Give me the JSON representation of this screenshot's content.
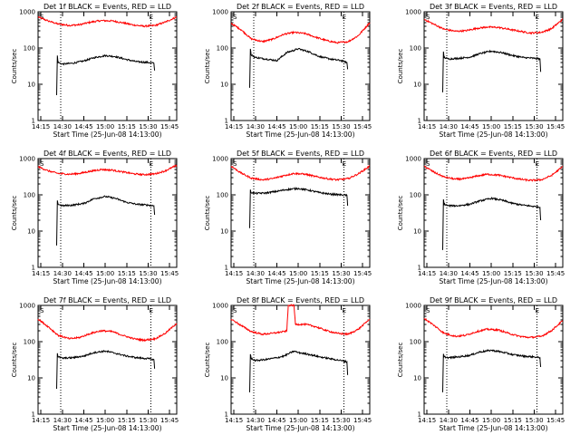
{
  "colors": {
    "events": "#000000",
    "lld": "#ff0000",
    "background": "#ffffff"
  },
  "common": {
    "ylabel": "Counts/sec",
    "xlabel": "Start Time (25-Jun-08 14:13:00)",
    "x_ticks": [
      "14:15",
      "14:30",
      "14:45",
      "15:00",
      "15:15",
      "15:30",
      "15:45"
    ],
    "y_ticks": [
      "1",
      "10",
      "100",
      "1000"
    ],
    "marker_start": "S",
    "marker_end": "E"
  },
  "chart_data": [
    {
      "type": "line",
      "title": "Det 1f BLACK = Events, RED = LLD",
      "xlim": [
        "14:13",
        "15:50"
      ],
      "ylim": [
        1,
        1000
      ],
      "yscale": "log",
      "markers": {
        "S": "14:29",
        "E": "15:32"
      },
      "series": [
        {
          "name": "RED = LLD",
          "color": "#ff0000",
          "x": [
            "14:13",
            "14:20",
            "14:27",
            "14:35",
            "14:42",
            "14:50",
            "14:57",
            "15:05",
            "15:12",
            "15:20",
            "15:27",
            "15:35",
            "15:42",
            "15:50"
          ],
          "y": [
            720,
            560,
            460,
            420,
            440,
            520,
            570,
            560,
            500,
            430,
            400,
            420,
            520,
            720
          ]
        },
        {
          "name": "BLACK = Events",
          "color": "#000000",
          "x": [
            "14:26",
            "14:26.5",
            "14:27",
            "14:30",
            "14:37",
            "14:45",
            "14:52",
            "15:00",
            "15:07",
            "15:15",
            "15:22",
            "15:30",
            "15:34",
            "15:34.5"
          ],
          "y": [
            5,
            62,
            40,
            36,
            38,
            44,
            54,
            62,
            58,
            48,
            42,
            40,
            38,
            24
          ]
        }
      ]
    },
    {
      "type": "line",
      "title": "Det 2f BLACK = Events, RED = LLD",
      "xlim": [
        "14:13",
        "15:50"
      ],
      "ylim": [
        1,
        1000
      ],
      "yscale": "log",
      "markers": {
        "S": "14:29",
        "E": "15:32"
      },
      "series": [
        {
          "name": "RED = LLD",
          "color": "#ff0000",
          "x": [
            "14:13",
            "14:20",
            "14:27",
            "14:35",
            "14:42",
            "14:50",
            "14:57",
            "15:05",
            "15:12",
            "15:20",
            "15:27",
            "15:35",
            "15:42",
            "15:50"
          ],
          "y": [
            480,
            320,
            180,
            150,
            175,
            240,
            270,
            250,
            200,
            160,
            140,
            150,
            220,
            500
          ]
        },
        {
          "name": "BLACK = Events",
          "color": "#000000",
          "x": [
            "14:26",
            "14:26.5",
            "14:27",
            "14:30",
            "14:37",
            "14:45",
            "14:52",
            "15:00",
            "15:07",
            "15:15",
            "15:22",
            "15:30",
            "15:34",
            "15:34.5"
          ],
          "y": [
            8,
            95,
            65,
            55,
            50,
            45,
            75,
            95,
            80,
            58,
            50,
            45,
            40,
            26
          ]
        }
      ]
    },
    {
      "type": "line",
      "title": "Det 3f BLACK = Events, RED = LLD",
      "xlim": [
        "14:13",
        "15:50"
      ],
      "ylim": [
        1,
        1000
      ],
      "yscale": "log",
      "markers": {
        "S": "14:29",
        "E": "15:32"
      },
      "series": [
        {
          "name": "RED = LLD",
          "color": "#ff0000",
          "x": [
            "14:13",
            "14:20",
            "14:27",
            "14:35",
            "14:42",
            "14:50",
            "14:57",
            "15:05",
            "15:12",
            "15:20",
            "15:27",
            "15:35",
            "15:42",
            "15:50"
          ],
          "y": [
            620,
            450,
            330,
            290,
            300,
            350,
            380,
            370,
            330,
            290,
            260,
            270,
            340,
            620
          ]
        },
        {
          "name": "BLACK = Events",
          "color": "#000000",
          "x": [
            "14:26",
            "14:26.5",
            "14:27",
            "14:30",
            "14:37",
            "14:45",
            "14:52",
            "15:00",
            "15:07",
            "15:15",
            "15:22",
            "15:30",
            "15:34",
            "15:34.5"
          ],
          "y": [
            6,
            80,
            55,
            50,
            52,
            56,
            70,
            82,
            75,
            62,
            55,
            52,
            50,
            22
          ]
        }
      ]
    },
    {
      "type": "line",
      "title": "Det 4f BLACK = Events, RED = LLD",
      "xlim": [
        "14:13",
        "15:50"
      ],
      "ylim": [
        1,
        1000
      ],
      "yscale": "log",
      "markers": {
        "S": "14:29",
        "E": "15:32"
      },
      "series": [
        {
          "name": "RED = LLD",
          "color": "#ff0000",
          "x": [
            "14:13",
            "14:20",
            "14:27",
            "14:35",
            "14:42",
            "14:50",
            "14:57",
            "15:05",
            "15:12",
            "15:20",
            "15:27",
            "15:35",
            "15:42",
            "15:50"
          ],
          "y": [
            600,
            460,
            390,
            370,
            390,
            450,
            500,
            480,
            430,
            380,
            360,
            380,
            460,
            650
          ]
        },
        {
          "name": "BLACK = Events",
          "color": "#000000",
          "x": [
            "14:26",
            "14:26.5",
            "14:27",
            "14:30",
            "14:37",
            "14:45",
            "14:52",
            "15:00",
            "15:07",
            "15:15",
            "15:22",
            "15:30",
            "15:34",
            "15:34.5"
          ],
          "y": [
            4,
            70,
            55,
            50,
            52,
            58,
            78,
            90,
            80,
            62,
            55,
            52,
            50,
            28
          ]
        }
      ]
    },
    {
      "type": "line",
      "title": "Det 5f BLACK = Events, RED = LLD",
      "xlim": [
        "14:13",
        "15:50"
      ],
      "ylim": [
        1,
        1000
      ],
      "yscale": "log",
      "markers": {
        "S": "14:29",
        "E": "15:32"
      },
      "series": [
        {
          "name": "RED = LLD",
          "color": "#ff0000",
          "x": [
            "14:13",
            "14:20",
            "14:27",
            "14:35",
            "14:42",
            "14:50",
            "14:57",
            "15:05",
            "15:12",
            "15:20",
            "15:27",
            "15:35",
            "15:42",
            "15:50"
          ],
          "y": [
            620,
            400,
            290,
            260,
            280,
            340,
            390,
            370,
            320,
            280,
            260,
            280,
            380,
            620
          ]
        },
        {
          "name": "BLACK = Events",
          "color": "#000000",
          "x": [
            "14:26",
            "14:26.5",
            "14:27",
            "14:30",
            "14:37",
            "14:45",
            "14:52",
            "15:00",
            "15:07",
            "15:15",
            "15:22",
            "15:30",
            "15:34",
            "15:34.5"
          ],
          "y": [
            12,
            140,
            115,
            110,
            112,
            125,
            140,
            150,
            135,
            115,
            105,
            100,
            98,
            50
          ]
        }
      ]
    },
    {
      "type": "line",
      "title": "Det 6f BLACK = Events, RED = LLD",
      "xlim": [
        "14:13",
        "15:50"
      ],
      "ylim": [
        1,
        1000
      ],
      "yscale": "log",
      "markers": {
        "S": "14:29",
        "E": "15:32"
      },
      "series": [
        {
          "name": "RED = LLD",
          "color": "#ff0000",
          "x": [
            "14:13",
            "14:20",
            "14:27",
            "14:35",
            "14:42",
            "14:50",
            "14:57",
            "15:05",
            "15:12",
            "15:20",
            "15:27",
            "15:35",
            "15:42",
            "15:50"
          ],
          "y": [
            620,
            420,
            310,
            270,
            280,
            330,
            370,
            350,
            310,
            270,
            250,
            260,
            340,
            600
          ]
        },
        {
          "name": "BLACK = Events",
          "color": "#000000",
          "x": [
            "14:26",
            "14:26.5",
            "14:27",
            "14:30",
            "14:37",
            "14:45",
            "14:52",
            "15:00",
            "15:07",
            "15:15",
            "15:22",
            "15:30",
            "15:34",
            "15:34.5"
          ],
          "y": [
            3,
            75,
            55,
            50,
            50,
            55,
            68,
            80,
            72,
            58,
            52,
            48,
            45,
            20
          ]
        }
      ]
    },
    {
      "type": "line",
      "title": "Det 7f BLACK = Events, RED = LLD",
      "xlim": [
        "14:13",
        "15:50"
      ],
      "ylim": [
        1,
        1000
      ],
      "yscale": "log",
      "markers": {
        "S": "14:29",
        "E": "15:32"
      },
      "series": [
        {
          "name": "RED = LLD",
          "color": "#ff0000",
          "x": [
            "14:13",
            "14:20",
            "14:27",
            "14:35",
            "14:42",
            "14:50",
            "14:57",
            "15:05",
            "15:12",
            "15:20",
            "15:27",
            "15:35",
            "15:42",
            "15:50"
          ],
          "y": [
            420,
            260,
            150,
            120,
            130,
            170,
            200,
            190,
            150,
            120,
            110,
            120,
            170,
            320
          ]
        },
        {
          "name": "BLACK = Events",
          "color": "#000000",
          "x": [
            "14:26",
            "14:26.5",
            "14:27",
            "14:30",
            "14:37",
            "14:45",
            "14:52",
            "15:00",
            "15:07",
            "15:15",
            "15:22",
            "15:30",
            "15:34",
            "15:34.5"
          ],
          "y": [
            5,
            48,
            38,
            35,
            36,
            40,
            50,
            55,
            48,
            40,
            36,
            34,
            32,
            18
          ]
        }
      ]
    },
    {
      "type": "line",
      "title": "Det 8f BLACK = Events, RED = LLD",
      "xlim": [
        "14:13",
        "15:50"
      ],
      "ylim": [
        1,
        1000
      ],
      "yscale": "log",
      "markers": {
        "S": "14:29",
        "E": "15:32"
      },
      "series": [
        {
          "name": "RED = LLD",
          "color": "#ff0000",
          "x": [
            "14:13",
            "14:20",
            "14:27",
            "14:35",
            "14:42",
            "14:50",
            "14:52",
            "14:53",
            "14:57",
            "14:58",
            "15:05",
            "15:12",
            "15:20",
            "15:27",
            "15:35",
            "15:42",
            "15:50"
          ],
          "y": [
            420,
            280,
            190,
            160,
            170,
            190,
            200,
            1000,
            1000,
            300,
            300,
            260,
            200,
            170,
            160,
            220,
            420
          ]
        },
        {
          "name": "BLACK = Events",
          "color": "#000000",
          "x": [
            "14:26",
            "14:26.5",
            "14:27",
            "14:30",
            "14:37",
            "14:45",
            "14:50",
            "14:57",
            "15:00",
            "15:07",
            "15:15",
            "15:22",
            "15:30",
            "15:34",
            "15:34.5"
          ],
          "y": [
            4,
            45,
            35,
            30,
            32,
            36,
            40,
            55,
            50,
            45,
            38,
            34,
            30,
            28,
            12
          ]
        }
      ]
    },
    {
      "type": "line",
      "title": "Det 9f BLACK = Events, RED = LLD",
      "xlim": [
        "14:13",
        "15:50"
      ],
      "ylim": [
        1,
        1000
      ],
      "yscale": "log",
      "markers": {
        "S": "14:29",
        "E": "15:32"
      },
      "series": [
        {
          "name": "RED = LLD",
          "color": "#ff0000",
          "x": [
            "14:13",
            "14:20",
            "14:27",
            "14:35",
            "14:42",
            "14:50",
            "14:57",
            "15:05",
            "15:12",
            "15:20",
            "15:27",
            "15:35",
            "15:42",
            "15:50"
          ],
          "y": [
            440,
            280,
            170,
            140,
            150,
            190,
            220,
            210,
            170,
            140,
            130,
            140,
            200,
            380
          ]
        },
        {
          "name": "BLACK = Events",
          "color": "#000000",
          "x": [
            "14:26",
            "14:26.5",
            "14:27",
            "14:30",
            "14:37",
            "14:45",
            "14:52",
            "15:00",
            "15:07",
            "15:15",
            "15:22",
            "15:30",
            "15:34",
            "15:34.5"
          ],
          "y": [
            4,
            46,
            38,
            36,
            38,
            42,
            52,
            58,
            52,
            44,
            40,
            38,
            36,
            20
          ]
        }
      ]
    }
  ]
}
